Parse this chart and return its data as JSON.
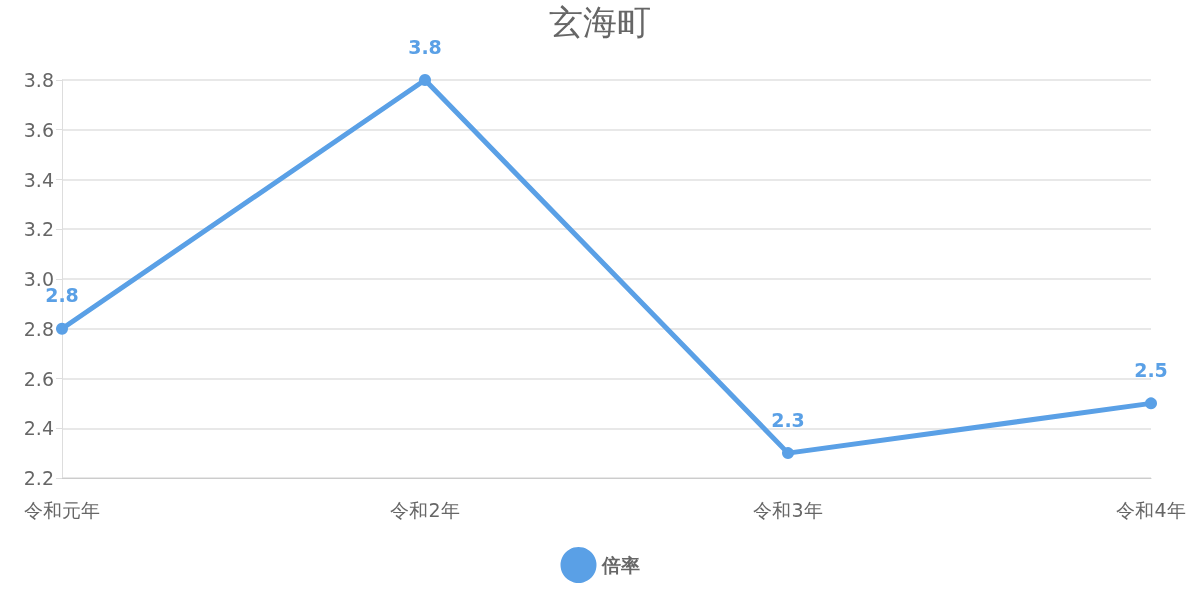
{
  "chart_data": {
    "type": "line",
    "title": "玄海町",
    "categories": [
      "令和元年",
      "令和2年",
      "令和3年",
      "令和4年"
    ],
    "series": [
      {
        "name": "倍率",
        "color": "#5aa0e6",
        "values": [
          2.8,
          3.8,
          2.3,
          2.5
        ]
      }
    ],
    "ylim": [
      2.2,
      3.8
    ],
    "yticks": [
      2.2,
      2.4,
      2.6,
      2.8,
      {
        "value": 3,
        "label": "3.0"
      },
      3.2,
      3.4,
      3.6,
      3.8
    ],
    "grid": "y",
    "legend": "bottom",
    "data_labels": true,
    "marker": "circle",
    "line_style": "solid"
  }
}
